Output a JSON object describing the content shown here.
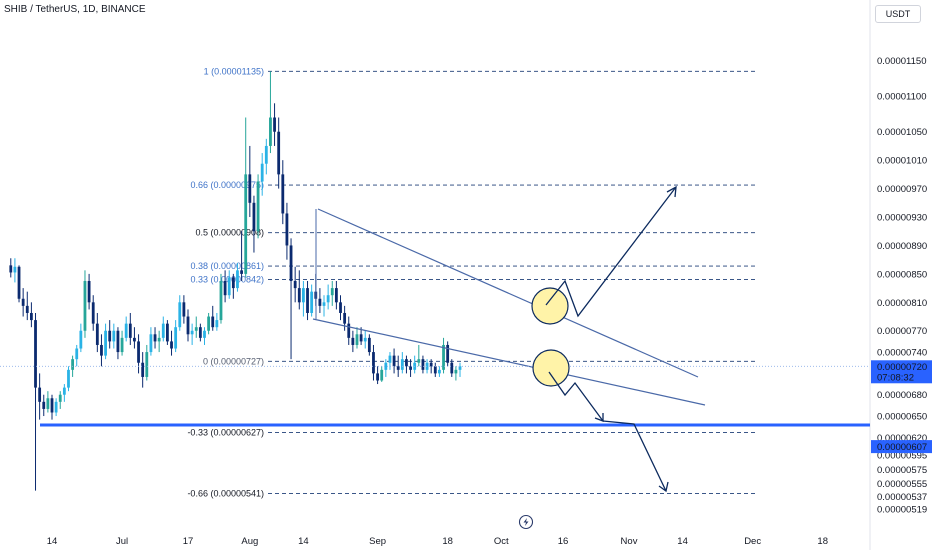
{
  "header": {
    "symbol_title": "SHIB / TetherUS, 1D, BINANCE",
    "currency_button": "USDT"
  },
  "icons": {
    "watermark": "tradingview-bolt-icon"
  },
  "colors": {
    "up": "#26a69a",
    "up_alt": "#2ab3e6",
    "down": "#0b2a6f",
    "fib": "#1f3f77",
    "fib_label": "#3f73c8",
    "price_line": "#2962ff",
    "price_badge": "#2962ff",
    "wedge": "#4a69a8",
    "arrow": "#0c2a5e",
    "circle_fill": "#fff3a8"
  },
  "chart_data": {
    "type": "candlestick",
    "price_axis": {
      "ylim": [
        5.15e-06,
        1.21e-05
      ],
      "ticks": [
        "0.00001150",
        "0.00001100",
        "0.00001050",
        "0.00001010",
        "0.00000970",
        "0.00000930",
        "0.00000890",
        "0.00000850",
        "0.00000810",
        "0.00000770",
        "0.00000740",
        "0.00000680",
        "0.00000650",
        "0.00000620",
        "0.00000595",
        "0.00000575",
        "0.00000555",
        "0.00000537",
        "0.00000519"
      ],
      "tick_values": [
        1.15e-05,
        1.1e-05,
        1.05e-05,
        1.01e-05,
        9.7e-06,
        9.3e-06,
        8.9e-06,
        8.5e-06,
        8.1e-06,
        7.7e-06,
        7.4e-06,
        6.8e-06,
        6.5e-06,
        6.2e-06,
        5.95e-06,
        5.75e-06,
        5.55e-06,
        5.37e-06,
        5.19e-06
      ],
      "last_price": {
        "label": "0.00000720",
        "value": 7.2e-06,
        "countdown": "07:08:32"
      },
      "support": {
        "label": "0.00000607",
        "value": 6.07e-06
      }
    },
    "time_axis": {
      "labels": [
        "14",
        "Jul",
        "17",
        "Aug",
        "14",
        "Sep",
        "18",
        "Oct",
        "16",
        "Nov",
        "14",
        "Dec",
        "18"
      ],
      "dates": [
        "2024-06-14",
        "2024-07-01",
        "2024-07-17",
        "2024-08-01",
        "2024-08-14",
        "2024-09-01",
        "2024-09-18",
        "2024-10-01",
        "2024-10-16",
        "2024-11-01",
        "2024-11-14",
        "2024-12-01",
        "2024-12-18"
      ]
    },
    "fib_levels": [
      {
        "label": "1 (0.00001135)",
        "value": 1.135e-05
      },
      {
        "label": "0.66 (0.00000975)",
        "value": 9.75e-06
      },
      {
        "label": "0.5 (0.00000908)",
        "value": 9.08e-06
      },
      {
        "label": "0.38 (0.00000861)",
        "value": 8.61e-06
      },
      {
        "label": "0.33 (0.00000842)",
        "value": 8.42e-06
      },
      {
        "label": "0 (0.00000727)",
        "value": 7.27e-06
      },
      {
        "label": "-0.33 (0.00000627)",
        "value": 6.27e-06
      },
      {
        "label": "-0.66 (0.00000541)",
        "value": 5.41e-06
      }
    ],
    "candles": {
      "start_date": "2024-06-04",
      "values": [
        [
          8.62e-06,
          8.72e-06,
          8.45e-06,
          8.52e-06
        ],
        [
          8.52e-06,
          8.72e-06,
          8.38e-06,
          8.6e-06
        ],
        [
          8.6e-06,
          8.62e-06,
          8.1e-06,
          8.15e-06
        ],
        [
          8.15e-06,
          8.3e-06,
          7.9e-06,
          8.05e-06
        ],
        [
          8.05e-06,
          8.25e-06,
          7.85e-06,
          7.95e-06
        ],
        [
          7.95e-06,
          8.1e-06,
          7.75e-06,
          7.85e-06
        ],
        [
          7.85e-06,
          7.95e-06,
          5.45e-06,
          6.9e-06
        ],
        [
          6.9e-06,
          7.1e-06,
          6.45e-06,
          6.7e-06
        ],
        [
          6.7e-06,
          6.8e-06,
          6.5e-06,
          6.6e-06
        ],
        [
          6.6e-06,
          6.85e-06,
          6.55e-06,
          6.75e-06
        ],
        [
          6.75e-06,
          6.8e-06,
          6.45e-06,
          6.55e-06
        ],
        [
          6.55e-06,
          6.75e-06,
          6.5e-06,
          6.7e-06
        ],
        [
          6.7e-06,
          6.85e-06,
          6.6e-06,
          6.8e-06
        ],
        [
          6.8e-06,
          6.95e-06,
          6.7e-06,
          6.9e-06
        ],
        [
          6.9e-06,
          7.2e-06,
          6.85e-06,
          7.15e-06
        ],
        [
          7.15e-06,
          7.35e-06,
          7.05e-06,
          7.3e-06
        ],
        [
          7.3e-06,
          7.5e-06,
          7.2e-06,
          7.45e-06
        ],
        [
          7.45e-06,
          7.8e-06,
          7.4e-06,
          7.7e-06
        ],
        [
          7.7e-06,
          8.55e-06,
          7.6e-06,
          8.4e-06
        ],
        [
          8.4e-06,
          8.5e-06,
          8e-06,
          8.1e-06
        ],
        [
          8.1e-06,
          8.2e-06,
          7.7e-06,
          7.8e-06
        ],
        [
          7.8e-06,
          7.95e-06,
          7.4e-06,
          7.5e-06
        ],
        [
          7.5e-06,
          7.65e-06,
          7.2e-06,
          7.35e-06
        ],
        [
          7.35e-06,
          7.8e-06,
          7.3e-06,
          7.7e-06
        ],
        [
          7.7e-06,
          7.85e-06,
          7.45e-06,
          7.55e-06
        ],
        [
          7.55e-06,
          7.8e-06,
          7.45e-06,
          7.7e-06
        ],
        [
          7.7e-06,
          7.75e-06,
          7.3e-06,
          7.4e-06
        ],
        [
          7.4e-06,
          7.7e-06,
          7.35e-06,
          7.6e-06
        ],
        [
          7.6e-06,
          7.9e-06,
          7.55e-06,
          7.8e-06
        ],
        [
          7.8e-06,
          7.95e-06,
          7.5e-06,
          7.6e-06
        ],
        [
          7.6e-06,
          7.75e-06,
          7.45e-06,
          7.55e-06
        ],
        [
          7.55e-06,
          7.65e-06,
          7.1e-06,
          7.25e-06
        ],
        [
          7.25e-06,
          7.4e-06,
          6.9e-06,
          7.05e-06
        ],
        [
          7.05e-06,
          7.5e-06,
          7e-06,
          7.4e-06
        ],
        [
          7.4e-06,
          7.75e-06,
          7.35e-06,
          7.65e-06
        ],
        [
          7.65e-06,
          7.75e-06,
          7.45e-06,
          7.55e-06
        ],
        [
          7.55e-06,
          7.7e-06,
          7.4e-06,
          7.6e-06
        ],
        [
          7.6e-06,
          7.9e-06,
          7.55e-06,
          7.8e-06
        ],
        [
          7.8e-06,
          7.85e-06,
          7.5e-06,
          7.55e-06
        ],
        [
          7.55e-06,
          7.7e-06,
          7.35e-06,
          7.45e-06
        ],
        [
          7.45e-06,
          7.85e-06,
          7.4e-06,
          7.75e-06
        ],
        [
          7.75e-06,
          8.2e-06,
          7.7e-06,
          8.1e-06
        ],
        [
          8.1e-06,
          8.2e-06,
          7.8e-06,
          7.9e-06
        ],
        [
          7.9e-06,
          8e-06,
          7.55e-06,
          7.65e-06
        ],
        [
          7.65e-06,
          7.8e-06,
          7.5e-06,
          7.7e-06
        ],
        [
          7.7e-06,
          7.9e-06,
          7.6e-06,
          7.75e-06
        ],
        [
          7.75e-06,
          7.8e-06,
          7.55e-06,
          7.6e-06
        ],
        [
          7.6e-06,
          7.75e-06,
          7.5e-06,
          7.7e-06
        ],
        [
          7.7e-06,
          7.95e-06,
          7.65e-06,
          7.9e-06
        ],
        [
          7.9e-06,
          8.05e-06,
          7.7e-06,
          7.75e-06
        ],
        [
          7.75e-06,
          7.95e-06,
          7.7e-06,
          7.85e-06
        ],
        [
          7.85e-06,
          8.5e-06,
          7.8e-06,
          8.4e-06
        ],
        [
          8.4e-06,
          8.55e-06,
          8.1e-06,
          8.2e-06
        ],
        [
          8.2e-06,
          8.55e-06,
          8.15e-06,
          8.45e-06
        ],
        [
          8.45e-06,
          8.5e-06,
          8.15e-06,
          8.3e-06
        ],
        [
          8.3e-06,
          8.65e-06,
          8.25e-06,
          8.55e-06
        ],
        [
          8.55e-06,
          9.1e-06,
          8.4e-06,
          8.5e-06
        ],
        [
          8.5e-06,
          1.07e-05,
          8.45e-06,
          9.9e-06
        ],
        [
          9.9e-06,
          1.03e-05,
          9.3e-06,
          9.5e-06
        ],
        [
          9.5e-06,
          9.6e-06,
          8.8e-06,
          9.1e-06
        ],
        [
          9.1e-06,
          9.9e-06,
          9e-06,
          9.8e-06
        ],
        [
          9.8e-06,
          1.02e-05,
          9.6e-06,
          1.005e-05
        ],
        [
          1.005e-05,
          1.04e-05,
          9.9e-06,
          1.03e-05
        ],
        [
          1.03e-05,
          1.135e-05,
          1.02e-05,
          1.07e-05
        ],
        [
          1.07e-05,
          1.09e-05,
          1.03e-05,
          1.05e-05
        ],
        [
          1.05e-05,
          1.07e-05,
          9.7e-06,
          9.9e-06
        ],
        [
          9.9e-06,
          1.01e-05,
          9.2e-06,
          9.35e-06
        ],
        [
          9.35e-06,
          9.5e-06,
          8.7e-06,
          8.9e-06
        ],
        [
          8.9e-06,
          9e-06,
          7.3e-06,
          8.4e-06
        ],
        [
          8.4e-06,
          8.6e-06,
          8.1e-06,
          8.3e-06
        ],
        [
          8.3e-06,
          8.55e-06,
          8e-06,
          8.1e-06
        ],
        [
          8.1e-06,
          8.4e-06,
          7.9e-06,
          8.3e-06
        ],
        [
          8.3e-06,
          8.4e-06,
          7.85e-06,
          7.95e-06
        ],
        [
          7.95e-06,
          8.35e-06,
          7.9e-06,
          8.25e-06
        ],
        [
          8.25e-06,
          8.5e-06,
          8.05e-06,
          8.15e-06
        ],
        [
          8.15e-06,
          8.3e-06,
          7.95e-06,
          8.05e-06
        ],
        [
          8.05e-06,
          8.2e-06,
          7.9e-06,
          8.1e-06
        ],
        [
          8.1e-06,
          8.35e-06,
          8e-06,
          8.2e-06
        ],
        [
          8.2e-06,
          8.4e-06,
          8.05e-06,
          8.3e-06
        ],
        [
          8.3e-06,
          8.4e-06,
          8e-06,
          8.1e-06
        ],
        [
          8.1e-06,
          8.2e-06,
          7.85e-06,
          7.95e-06
        ],
        [
          7.95e-06,
          8.05e-06,
          7.7e-06,
          7.8e-06
        ],
        [
          7.8e-06,
          7.9e-06,
          7.5e-06,
          7.6e-06
        ],
        [
          7.6e-06,
          7.7e-06,
          7.4e-06,
          7.5e-06
        ],
        [
          7.5e-06,
          7.75e-06,
          7.45e-06,
          7.65e-06
        ],
        [
          7.65e-06,
          7.75e-06,
          7.5e-06,
          7.55e-06
        ],
        [
          7.55e-06,
          7.7e-06,
          7.45e-06,
          7.6e-06
        ],
        [
          7.6e-06,
          7.65e-06,
          7.35e-06,
          7.4e-06
        ],
        [
          7.4e-06,
          7.5e-06,
          7e-06,
          7.1e-06
        ],
        [
          7.1e-06,
          7.2e-06,
          6.95e-06,
          7e-06
        ],
        [
          7e-06,
          7.2e-06,
          6.98e-06,
          7.15e-06
        ],
        [
          7.15e-06,
          7.3e-06,
          7.05e-06,
          7.25e-06
        ],
        [
          7.25e-06,
          7.4e-06,
          7.15e-06,
          7.35e-06
        ],
        [
          7.35e-06,
          7.45e-06,
          7.1e-06,
          7.2e-06
        ],
        [
          7.2e-06,
          7.35e-06,
          7.05e-06,
          7.15e-06
        ],
        [
          7.15e-06,
          7.4e-06,
          7.1e-06,
          7.3e-06
        ],
        [
          7.3e-06,
          7.35e-06,
          7.1e-06,
          7.2e-06
        ],
        [
          7.2e-06,
          7.3e-06,
          7.05e-06,
          7.15e-06
        ],
        [
          7.15e-06,
          7.35e-06,
          7.1e-06,
          7.25e-06
        ],
        [
          7.25e-06,
          7.5e-06,
          7.2e-06,
          7.3e-06
        ],
        [
          7.3e-06,
          7.35e-06,
          7.1e-06,
          7.15e-06
        ],
        [
          7.15e-06,
          7.3e-06,
          7.1e-06,
          7.25e-06
        ],
        [
          7.25e-06,
          7.3e-06,
          7.1e-06,
          7.2e-06
        ],
        [
          7.2e-06,
          7.25e-06,
          7.05e-06,
          7.1e-06
        ],
        [
          7.1e-06,
          7.2e-06,
          7.05e-06,
          7.15e-06
        ],
        [
          7.15e-06,
          7.6e-06,
          7.1e-06,
          7.5e-06
        ],
        [
          7.5e-06,
          7.55e-06,
          7.2e-06,
          7.25e-06
        ],
        [
          7.25e-06,
          7.3e-06,
          7.05e-06,
          7.1e-06
        ],
        [
          7.1e-06,
          7.2e-06,
          7e-06,
          7.15e-06
        ],
        [
          7.15e-06,
          7.25e-06,
          7.05e-06,
          7.2e-06
        ]
      ]
    }
  }
}
